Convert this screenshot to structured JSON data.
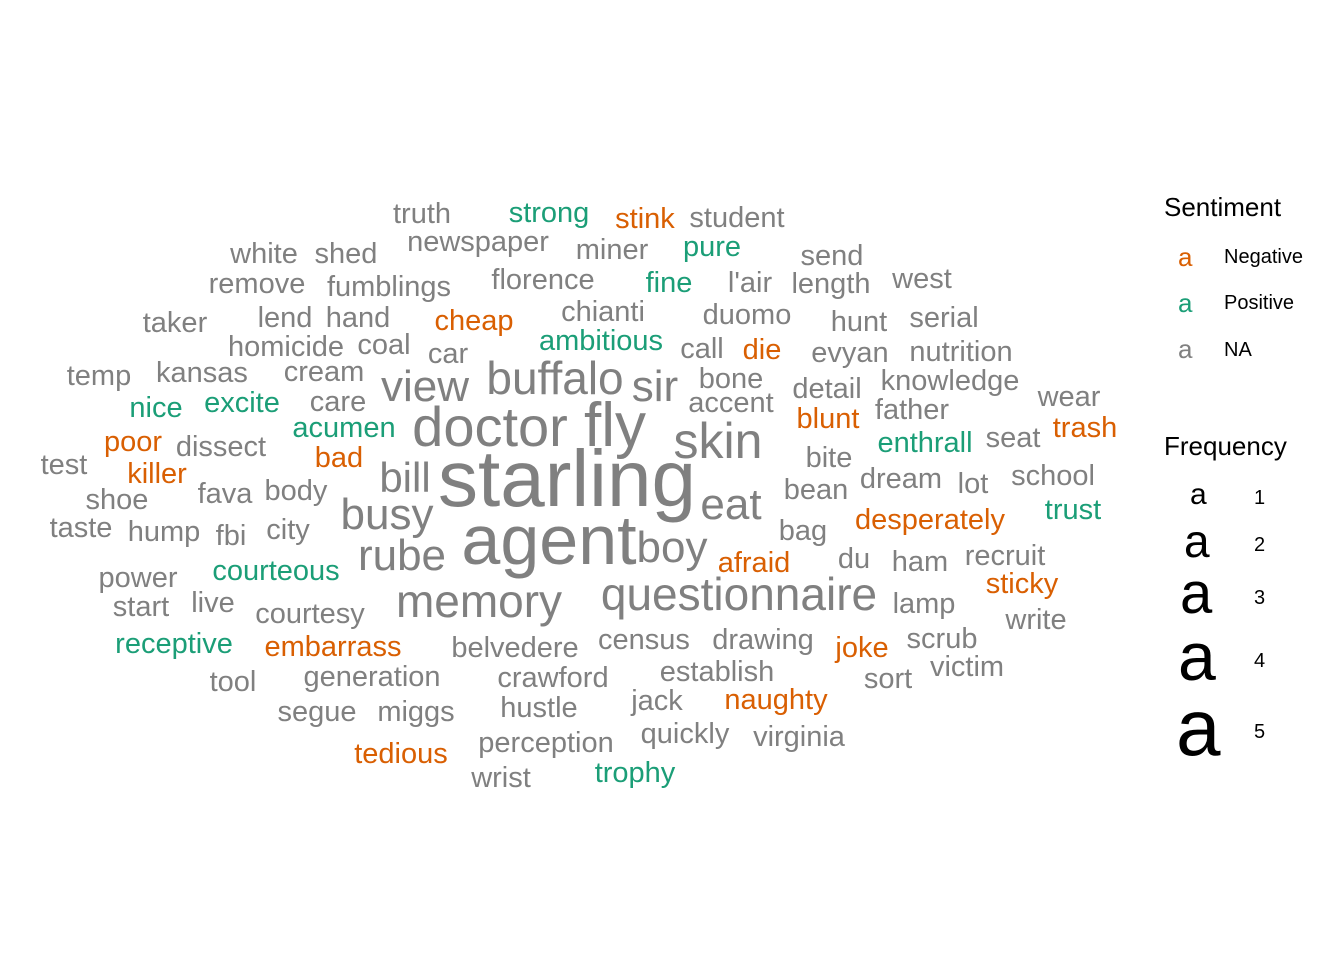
{
  "chart_data": {
    "type": "wordcloud",
    "colors": {
      "Negative": "#d95f02",
      "Positive": "#1b9e77",
      "NA": "#808080"
    },
    "words": [
      {
        "text": "starling",
        "sentiment": "NA",
        "frequency": 5
      },
      {
        "text": "agent",
        "sentiment": "NA",
        "frequency": 5
      },
      {
        "text": "doctor",
        "sentiment": "NA",
        "frequency": 4
      },
      {
        "text": "fly",
        "sentiment": "NA",
        "frequency": 4
      },
      {
        "text": "skin",
        "sentiment": "NA",
        "frequency": 3
      },
      {
        "text": "questionnaire",
        "sentiment": "NA",
        "frequency": 3
      },
      {
        "text": "memory",
        "sentiment": "NA",
        "frequency": 3
      },
      {
        "text": "buffalo",
        "sentiment": "NA",
        "frequency": 3
      },
      {
        "text": "boy",
        "sentiment": "NA",
        "frequency": 3
      },
      {
        "text": "rube",
        "sentiment": "NA",
        "frequency": 3
      },
      {
        "text": "busy",
        "sentiment": "NA",
        "frequency": 3
      },
      {
        "text": "eat",
        "sentiment": "NA",
        "frequency": 3
      },
      {
        "text": "view",
        "sentiment": "NA",
        "frequency": 3
      },
      {
        "text": "sir",
        "sentiment": "NA",
        "frequency": 3
      },
      {
        "text": "bill",
        "sentiment": "NA",
        "frequency": 3
      },
      {
        "text": "truth",
        "sentiment": "NA",
        "frequency": 1
      },
      {
        "text": "strong",
        "sentiment": "Positive",
        "frequency": 1
      },
      {
        "text": "stink",
        "sentiment": "Negative",
        "frequency": 1
      },
      {
        "text": "student",
        "sentiment": "NA",
        "frequency": 1
      },
      {
        "text": "white",
        "sentiment": "NA",
        "frequency": 1
      },
      {
        "text": "shed",
        "sentiment": "NA",
        "frequency": 1
      },
      {
        "text": "newspaper",
        "sentiment": "NA",
        "frequency": 1
      },
      {
        "text": "miner",
        "sentiment": "NA",
        "frequency": 1
      },
      {
        "text": "pure",
        "sentiment": "Positive",
        "frequency": 1
      },
      {
        "text": "send",
        "sentiment": "NA",
        "frequency": 1
      },
      {
        "text": "remove",
        "sentiment": "NA",
        "frequency": 1
      },
      {
        "text": "fumblings",
        "sentiment": "NA",
        "frequency": 1
      },
      {
        "text": "florence",
        "sentiment": "NA",
        "frequency": 1
      },
      {
        "text": "fine",
        "sentiment": "Positive",
        "frequency": 1
      },
      {
        "text": "l'air",
        "sentiment": "NA",
        "frequency": 1
      },
      {
        "text": "length",
        "sentiment": "NA",
        "frequency": 1
      },
      {
        "text": "west",
        "sentiment": "NA",
        "frequency": 1
      },
      {
        "text": "taker",
        "sentiment": "NA",
        "frequency": 1
      },
      {
        "text": "lend",
        "sentiment": "NA",
        "frequency": 1
      },
      {
        "text": "hand",
        "sentiment": "NA",
        "frequency": 1
      },
      {
        "text": "cheap",
        "sentiment": "Negative",
        "frequency": 1
      },
      {
        "text": "chianti",
        "sentiment": "NA",
        "frequency": 1
      },
      {
        "text": "duomo",
        "sentiment": "NA",
        "frequency": 1
      },
      {
        "text": "hunt",
        "sentiment": "NA",
        "frequency": 1
      },
      {
        "text": "serial",
        "sentiment": "NA",
        "frequency": 1
      },
      {
        "text": "homicide",
        "sentiment": "NA",
        "frequency": 1
      },
      {
        "text": "coal",
        "sentiment": "NA",
        "frequency": 1
      },
      {
        "text": "ambitious",
        "sentiment": "Positive",
        "frequency": 1
      },
      {
        "text": "call",
        "sentiment": "NA",
        "frequency": 1
      },
      {
        "text": "die",
        "sentiment": "Negative",
        "frequency": 1
      },
      {
        "text": "evyan",
        "sentiment": "NA",
        "frequency": 1
      },
      {
        "text": "nutrition",
        "sentiment": "NA",
        "frequency": 1
      },
      {
        "text": "temp",
        "sentiment": "NA",
        "frequency": 1
      },
      {
        "text": "kansas",
        "sentiment": "NA",
        "frequency": 1
      },
      {
        "text": "cream",
        "sentiment": "NA",
        "frequency": 1
      },
      {
        "text": "car",
        "sentiment": "NA",
        "frequency": 1
      },
      {
        "text": "bone",
        "sentiment": "NA",
        "frequency": 1
      },
      {
        "text": "detail",
        "sentiment": "NA",
        "frequency": 1
      },
      {
        "text": "knowledge",
        "sentiment": "NA",
        "frequency": 1
      },
      {
        "text": "nice",
        "sentiment": "Positive",
        "frequency": 1
      },
      {
        "text": "excite",
        "sentiment": "Positive",
        "frequency": 1
      },
      {
        "text": "care",
        "sentiment": "NA",
        "frequency": 1
      },
      {
        "text": "accent",
        "sentiment": "NA",
        "frequency": 1
      },
      {
        "text": "blunt",
        "sentiment": "Negative",
        "frequency": 1
      },
      {
        "text": "father",
        "sentiment": "NA",
        "frequency": 1
      },
      {
        "text": "wear",
        "sentiment": "NA",
        "frequency": 1
      },
      {
        "text": "poor",
        "sentiment": "Negative",
        "frequency": 1
      },
      {
        "text": "dissect",
        "sentiment": "NA",
        "frequency": 1
      },
      {
        "text": "acumen",
        "sentiment": "Positive",
        "frequency": 1
      },
      {
        "text": "enthrall",
        "sentiment": "Positive",
        "frequency": 1
      },
      {
        "text": "seat",
        "sentiment": "NA",
        "frequency": 1
      },
      {
        "text": "trash",
        "sentiment": "Negative",
        "frequency": 1
      },
      {
        "text": "test",
        "sentiment": "NA",
        "frequency": 1
      },
      {
        "text": "killer",
        "sentiment": "Negative",
        "frequency": 1
      },
      {
        "text": "bad",
        "sentiment": "Negative",
        "frequency": 1
      },
      {
        "text": "bite",
        "sentiment": "NA",
        "frequency": 1
      },
      {
        "text": "dream",
        "sentiment": "NA",
        "frequency": 1
      },
      {
        "text": "lot",
        "sentiment": "NA",
        "frequency": 1
      },
      {
        "text": "school",
        "sentiment": "NA",
        "frequency": 1
      },
      {
        "text": "shoe",
        "sentiment": "NA",
        "frequency": 1
      },
      {
        "text": "fava",
        "sentiment": "NA",
        "frequency": 1
      },
      {
        "text": "body",
        "sentiment": "NA",
        "frequency": 1
      },
      {
        "text": "bean",
        "sentiment": "NA",
        "frequency": 1
      },
      {
        "text": "trust",
        "sentiment": "Positive",
        "frequency": 1
      },
      {
        "text": "taste",
        "sentiment": "NA",
        "frequency": 1
      },
      {
        "text": "hump",
        "sentiment": "NA",
        "frequency": 1
      },
      {
        "text": "fbi",
        "sentiment": "NA",
        "frequency": 1
      },
      {
        "text": "city",
        "sentiment": "NA",
        "frequency": 1
      },
      {
        "text": "desperately",
        "sentiment": "Negative",
        "frequency": 1
      },
      {
        "text": "bag",
        "sentiment": "NA",
        "frequency": 1
      },
      {
        "text": "afraid",
        "sentiment": "Negative",
        "frequency": 1
      },
      {
        "text": "du",
        "sentiment": "NA",
        "frequency": 1
      },
      {
        "text": "ham",
        "sentiment": "NA",
        "frequency": 1
      },
      {
        "text": "recruit",
        "sentiment": "NA",
        "frequency": 1
      },
      {
        "text": "power",
        "sentiment": "NA",
        "frequency": 1
      },
      {
        "text": "courteous",
        "sentiment": "Positive",
        "frequency": 1
      },
      {
        "text": "sticky",
        "sentiment": "Negative",
        "frequency": 1
      },
      {
        "text": "start",
        "sentiment": "NA",
        "frequency": 1
      },
      {
        "text": "live",
        "sentiment": "NA",
        "frequency": 1
      },
      {
        "text": "courtesy",
        "sentiment": "NA",
        "frequency": 1
      },
      {
        "text": "lamp",
        "sentiment": "NA",
        "frequency": 1
      },
      {
        "text": "write",
        "sentiment": "NA",
        "frequency": 1
      },
      {
        "text": "receptive",
        "sentiment": "Positive",
        "frequency": 1
      },
      {
        "text": "embarrass",
        "sentiment": "Negative",
        "frequency": 1
      },
      {
        "text": "belvedere",
        "sentiment": "NA",
        "frequency": 1
      },
      {
        "text": "census",
        "sentiment": "NA",
        "frequency": 1
      },
      {
        "text": "drawing",
        "sentiment": "NA",
        "frequency": 1
      },
      {
        "text": "joke",
        "sentiment": "Negative",
        "frequency": 1
      },
      {
        "text": "scrub",
        "sentiment": "NA",
        "frequency": 1
      },
      {
        "text": "tool",
        "sentiment": "NA",
        "frequency": 1
      },
      {
        "text": "generation",
        "sentiment": "NA",
        "frequency": 1
      },
      {
        "text": "crawford",
        "sentiment": "NA",
        "frequency": 1
      },
      {
        "text": "establish",
        "sentiment": "NA",
        "frequency": 1
      },
      {
        "text": "sort",
        "sentiment": "NA",
        "frequency": 1
      },
      {
        "text": "victim",
        "sentiment": "NA",
        "frequency": 1
      },
      {
        "text": "segue",
        "sentiment": "NA",
        "frequency": 1
      },
      {
        "text": "miggs",
        "sentiment": "NA",
        "frequency": 1
      },
      {
        "text": "hustle",
        "sentiment": "NA",
        "frequency": 1
      },
      {
        "text": "jack",
        "sentiment": "NA",
        "frequency": 1
      },
      {
        "text": "naughty",
        "sentiment": "Negative",
        "frequency": 1
      },
      {
        "text": "tedious",
        "sentiment": "Negative",
        "frequency": 1
      },
      {
        "text": "perception",
        "sentiment": "NA",
        "frequency": 1
      },
      {
        "text": "quickly",
        "sentiment": "NA",
        "frequency": 1
      },
      {
        "text": "virginia",
        "sentiment": "NA",
        "frequency": 1
      },
      {
        "text": "wrist",
        "sentiment": "NA",
        "frequency": 1
      },
      {
        "text": "trophy",
        "sentiment": "Positive",
        "frequency": 1
      }
    ],
    "legend": {
      "sentiment_title": "Sentiment",
      "sentiment_items": [
        {
          "key": "a",
          "label": "Negative",
          "color": "#d95f02"
        },
        {
          "key": "a",
          "label": "Positive",
          "color": "#1b9e77"
        },
        {
          "key": "a",
          "label": "NA",
          "color": "#808080"
        }
      ],
      "frequency_title": "Frequency",
      "frequency_items": [
        {
          "key": "a",
          "label": "1",
          "value": 1
        },
        {
          "key": "a",
          "label": "2",
          "value": 2
        },
        {
          "key": "a",
          "label": "3",
          "value": 3
        },
        {
          "key": "a",
          "label": "4",
          "value": 4
        },
        {
          "key": "a",
          "label": "5",
          "value": 5
        }
      ],
      "placement": "right"
    }
  }
}
